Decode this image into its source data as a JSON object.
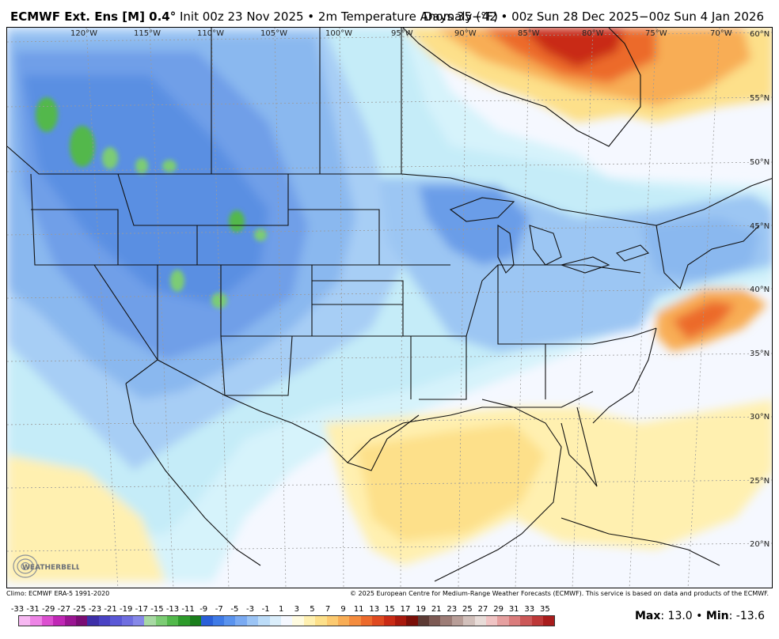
{
  "header": {
    "model": "ECMWF Ext. Ens [M] 0.4",
    "degree_symbol": "°",
    "description": " Init 00z 23 Nov 2025 • 2m Temperature Anomaly (°F)",
    "valid": "Days 35−42 • 00z Sun 28 Dec 2025−00z Sun 4 Jan 2026"
  },
  "map": {
    "lon_labels": [
      "120°W",
      "115°W",
      "110°W",
      "105°W",
      "100°W",
      "95°W",
      "90°W",
      "85°W",
      "80°W",
      "75°W",
      "70°W"
    ],
    "lat_labels": [
      "60°N",
      "55°N",
      "50°N",
      "45°N",
      "40°N",
      "35°N",
      "30°N",
      "25°N",
      "20°N"
    ],
    "logo_text": "WEATHERBELL"
  },
  "footer": {
    "climo": "Climo: ECMWF ERA-5 1991-2020",
    "copyright": "© 2025 European Centre for Medium-Range Weather Forecasts (ECMWF). This service is based on data and products of the ECMWF."
  },
  "colorbar": {
    "tick_labels": [
      "-33",
      "-31",
      "-29",
      "-27",
      "-25",
      "-23",
      "-21",
      "-19",
      "-17",
      "-15",
      "-13",
      "-11",
      "-9",
      "-7",
      "-5",
      "-3",
      "-1",
      "1",
      "3",
      "5",
      "7",
      "9",
      "11",
      "13",
      "15",
      "17",
      "19",
      "21",
      "23",
      "25",
      "27",
      "29",
      "31",
      "33",
      "35"
    ],
    "colors": [
      "#f7b8f2",
      "#ee84e6",
      "#dc4fd0",
      "#c027b5",
      "#9a1592",
      "#7a0d74",
      "#3d2fa8",
      "#4a43c4",
      "#5a58d6",
      "#6f6ee0",
      "#8688e8",
      "#a7d9a3",
      "#7ccc74",
      "#52b84b",
      "#2e9b2b",
      "#1a7e1c",
      "#2a5fd8",
      "#3f7ae6",
      "#5a93ee",
      "#7aaaf2",
      "#9bc4f5",
      "#bcdcf8",
      "#dbeefb",
      "#f5f8ff",
      "#fffbe0",
      "#fff0b0",
      "#fde08a",
      "#fcca70",
      "#f8ad55",
      "#f48c3e",
      "#ec6a2c",
      "#df4a20",
      "#c92b15",
      "#a8190d",
      "#7a0f08",
      "#5c3a34",
      "#7d5a54",
      "#9c7c76",
      "#b89e98",
      "#d2c0bb",
      "#e8dcd8",
      "#f0c4c4",
      "#e6a0a0",
      "#da7c7c",
      "#cc5858",
      "#bd3838",
      "#a81c1c"
    ],
    "max_label": "Max",
    "max_value": "13.0",
    "min_label": "Min",
    "min_value": "-13.6",
    "separator": " • "
  }
}
